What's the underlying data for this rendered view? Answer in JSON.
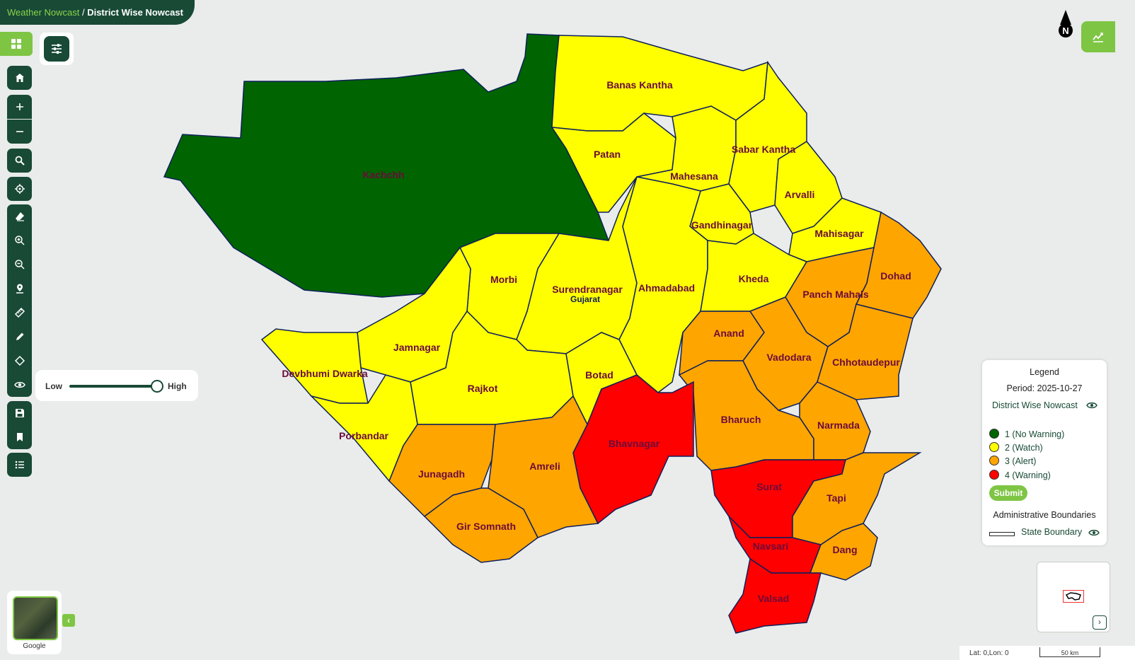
{
  "breadcrumb": {
    "parent": "Weather Nowcast",
    "separator": " / ",
    "current": "District Wise Nowcast"
  },
  "slider": {
    "low_label": "Low",
    "high_label": "High",
    "level": 1.0
  },
  "compass": {
    "label": "N"
  },
  "state_label": "Gujarat",
  "districts": [
    {
      "name": "Kachchh",
      "level": 1
    },
    {
      "name": "Banas Kantha",
      "level": 2
    },
    {
      "name": "Patan",
      "level": 2
    },
    {
      "name": "Mahesana",
      "level": 2
    },
    {
      "name": "Sabar Kantha",
      "level": 2
    },
    {
      "name": "Arvalli",
      "level": 2
    },
    {
      "name": "Gandhinagar",
      "level": 2
    },
    {
      "name": "Mahisagar",
      "level": 2
    },
    {
      "name": "Morbi",
      "level": 2
    },
    {
      "name": "Surendranagar",
      "level": 2
    },
    {
      "name": "Ahmadabad",
      "level": 2
    },
    {
      "name": "Kheda",
      "level": 2
    },
    {
      "name": "Dohad",
      "level": 3
    },
    {
      "name": "Panch Mahals",
      "level": 3
    },
    {
      "name": "Jamnagar",
      "level": 2
    },
    {
      "name": "Devbhumi Dwarka",
      "level": 2
    },
    {
      "name": "Rajkot",
      "level": 2
    },
    {
      "name": "Botad",
      "level": 2
    },
    {
      "name": "Anand",
      "level": 3
    },
    {
      "name": "Vadodara",
      "level": 3
    },
    {
      "name": "Chhotaudepur",
      "level": 3
    },
    {
      "name": "Porbandar",
      "level": 2
    },
    {
      "name": "Bharuch",
      "level": 3
    },
    {
      "name": "Narmada",
      "level": 3
    },
    {
      "name": "Bhavnagar",
      "level": 4
    },
    {
      "name": "Junagadh",
      "level": 3
    },
    {
      "name": "Amreli",
      "level": 3
    },
    {
      "name": "Surat",
      "level": 4
    },
    {
      "name": "Tapi",
      "level": 3
    },
    {
      "name": "Gir Somnath",
      "level": 3
    },
    {
      "name": "Navsari",
      "level": 4
    },
    {
      "name": "Dang",
      "level": 3
    },
    {
      "name": "Valsad",
      "level": 4
    }
  ],
  "legend": {
    "title": "Legend",
    "period": "Period: 2025-10-27",
    "layer_name": "District Wise Nowcast",
    "items": [
      {
        "label": "1 (No Warning)",
        "color": "#006400"
      },
      {
        "label": "2 (Watch)",
        "color": "#ffff00"
      },
      {
        "label": "3 (Alert)",
        "color": "#ffa500"
      },
      {
        "label": "4 (Warning)",
        "color": "#ff0000"
      }
    ],
    "submit_label": "Submit",
    "admin_title": "Administrative Boundaries",
    "boundary_label": "State Boundary"
  },
  "basemap": {
    "label": "Google"
  },
  "status": {
    "latlon": "Lat: 0,Lon: 0",
    "scale": "50 km"
  }
}
